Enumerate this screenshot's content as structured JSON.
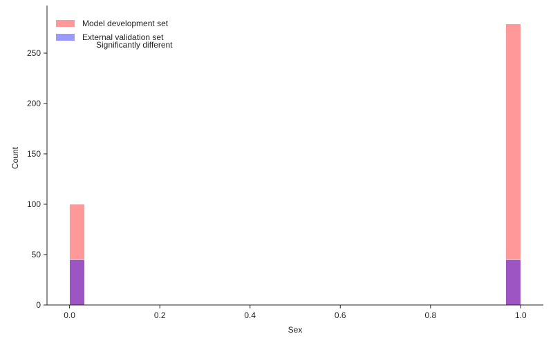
{
  "chart_data": {
    "type": "bar",
    "title": "",
    "xlabel": "Sex",
    "ylabel": "Count",
    "xlim": [
      -0.05,
      1.05
    ],
    "ylim": [
      0,
      280
    ],
    "x_ticks": [
      "0.0",
      "0.2",
      "0.4",
      "0.6",
      "0.8",
      "1.0"
    ],
    "y_ticks": [
      "0",
      "50",
      "100",
      "150",
      "200",
      "250"
    ],
    "bin_width": 0.0333,
    "series": [
      {
        "name": "Model development set",
        "color": "#ff9999",
        "bins": [
          {
            "x0": 0.0,
            "x1": 0.0333,
            "value": 100
          },
          {
            "x0": 0.9667,
            "x1": 1.0,
            "value": 279
          }
        ]
      },
      {
        "name": "External validation set",
        "color": "#9999ff",
        "bins": [
          {
            "x0": 0.0,
            "x1": 0.0333,
            "value": 45
          },
          {
            "x0": 0.9667,
            "x1": 1.0,
            "value": 45
          }
        ]
      }
    ],
    "overlap_color": "#9e55c4",
    "legend": {
      "placement": "top-left"
    },
    "annotation": "Significantly different",
    "grid": false
  }
}
